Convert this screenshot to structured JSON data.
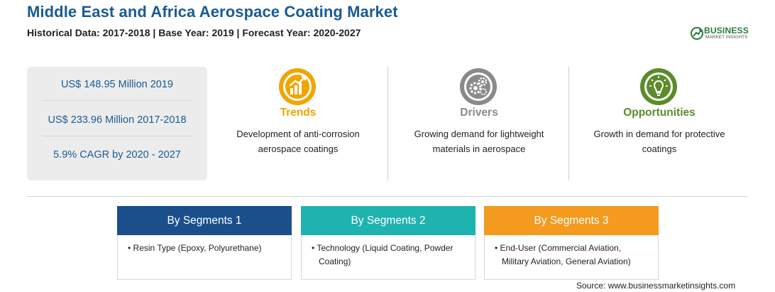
{
  "header": {
    "title": "Middle East and Africa Aerospace Coating Market",
    "subtitle": "Historical Data: 2017-2018 | Base Year: 2019 | Forecast Year: 2020-2027"
  },
  "logo": {
    "word": "BUSINESS",
    "sub": "MARKET INSIGHTS",
    "color": "#2a7a3b"
  },
  "stats": [
    "US$ 148.95 Million 2019",
    "US$ 233.96 Million 2017-2018",
    "5.9% CAGR by 2020 - 2027"
  ],
  "features": [
    {
      "title": "Trends",
      "desc_line1": "Development of anti-corrosion",
      "desc_line2": "aerospace coatings",
      "color": "#f0a500",
      "icon": "trend-chart-icon"
    },
    {
      "title": "Drivers",
      "desc_line1": "Growing demand for lightweight",
      "desc_line2": "materials in aerospace",
      "color": "#8a8a8a",
      "icon": "gears-icon"
    },
    {
      "title": "Opportunities",
      "desc_line1": "Growth in demand for protective",
      "desc_line2": "coatings",
      "color": "#5b8b2a",
      "icon": "lightbulb-icon"
    }
  ],
  "segments": [
    {
      "heading": "By Segments 1",
      "line1": "• Resin Type (Epoxy, Polyurethane)",
      "line2": "",
      "color": "#1a4f8c"
    },
    {
      "heading": "By Segments 2",
      "line1": "• Technology (Liquid Coating, Powder",
      "line2": "Coating)",
      "color": "#1fb3b0"
    },
    {
      "heading": "By Segments 3",
      "line1": "• End-User (Commercial Aviation,",
      "line2": "Military Aviation, General Aviation)",
      "color": "#f39a1f"
    }
  ],
  "source": "Source: www.businessmarketinsights.com"
}
